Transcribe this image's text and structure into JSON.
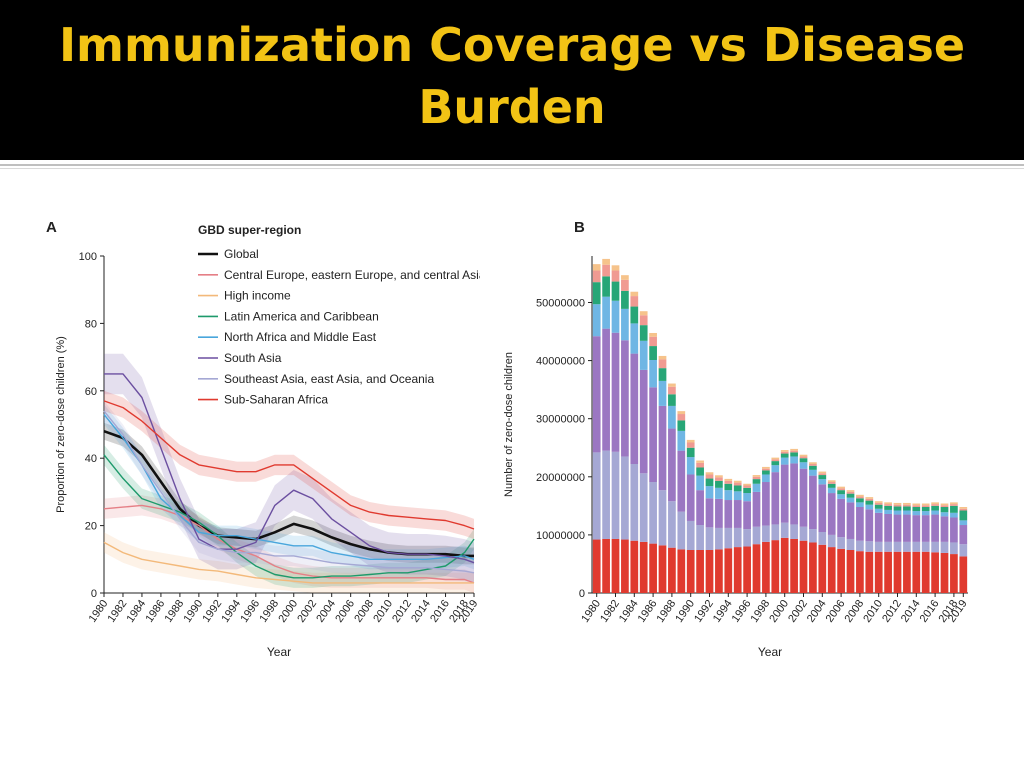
{
  "slide": {
    "title": "Immunization Coverage vs Disease Burden"
  },
  "chart_data": [
    {
      "panel": "A",
      "type": "line",
      "ylabel": "Proportion of zero-dose children (%)",
      "xlabel": "Year",
      "ylim": [
        0,
        100
      ],
      "yticks": [
        0,
        20,
        40,
        60,
        80,
        100
      ],
      "xlim": [
        1980,
        2019
      ],
      "xticks": [
        "1980",
        "1982",
        "1984",
        "1986",
        "1988",
        "1990",
        "1992",
        "1994",
        "1996",
        "1998",
        "2000",
        "2002",
        "2004",
        "2006",
        "2008",
        "2010",
        "2012",
        "2014",
        "2016",
        "2018",
        "2019"
      ],
      "legend_title": "GBD super-region",
      "legend_position": "top-right",
      "x": [
        1980,
        1982,
        1984,
        1986,
        1988,
        1990,
        1992,
        1994,
        1996,
        1998,
        2000,
        2002,
        2004,
        2006,
        2008,
        2010,
        2012,
        2014,
        2016,
        2018,
        2019
      ],
      "series": [
        {
          "name": "Global",
          "color": "#111111",
          "values": [
            48,
            46,
            41,
            33,
            25,
            20,
            17,
            16.5,
            16,
            18,
            20.5,
            19,
            16.5,
            14.5,
            13,
            12,
            11.5,
            11.5,
            11.5,
            11,
            11
          ]
        },
        {
          "name": "Central Europe, eastern Europe, and central Asia",
          "color": "#e57f86",
          "values": [
            25,
            25.5,
            26,
            25,
            23,
            20,
            16,
            13,
            11,
            8,
            6,
            5,
            4.5,
            4.5,
            4.5,
            4.5,
            4.5,
            4.5,
            4,
            4,
            3
          ]
        },
        {
          "name": "High income",
          "color": "#f3b97a",
          "values": [
            15,
            12,
            10,
            9,
            8,
            7,
            6.5,
            5.5,
            4.5,
            4,
            3.5,
            3,
            3,
            3,
            3,
            3,
            3,
            3,
            3,
            3,
            3
          ]
        },
        {
          "name": "Latin America and Caribbean",
          "color": "#1e9a6b",
          "values": [
            41,
            34,
            28,
            26,
            24,
            21,
            17,
            12,
            8,
            5.5,
            4.5,
            4.5,
            5,
            5,
            5.5,
            6,
            6,
            7,
            8,
            12,
            16
          ]
        },
        {
          "name": "North Africa and Middle East",
          "color": "#49a6dc",
          "values": [
            53,
            46,
            38,
            28,
            23,
            18,
            17,
            17,
            16,
            15,
            14,
            14,
            12,
            11,
            10,
            10,
            10,
            10,
            10.5,
            11,
            10
          ]
        },
        {
          "name": "South Asia",
          "color": "#6b4fa0",
          "values": [
            65,
            65,
            58,
            43,
            28,
            16,
            13,
            13,
            15,
            26,
            30.5,
            28,
            22,
            18,
            14,
            12,
            11.5,
            11.5,
            11,
            10,
            9
          ]
        },
        {
          "name": "Southeast Asia, east Asia, and Oceania",
          "color": "#a5a8d4",
          "values": [
            54,
            47,
            38,
            30,
            22,
            15,
            13,
            12,
            12,
            11,
            11,
            10,
            9,
            8.5,
            8,
            7.5,
            7.5,
            7.5,
            7,
            6.5,
            6
          ]
        },
        {
          "name": "Sub-Saharan Africa",
          "color": "#e03a2f",
          "values": [
            57,
            55,
            51,
            46,
            41,
            38,
            37,
            36,
            36,
            38,
            38,
            34,
            30,
            26,
            24,
            23,
            22.5,
            22,
            21.5,
            20,
            19
          ]
        }
      ]
    },
    {
      "panel": "B",
      "type": "bar",
      "stacked": true,
      "ylabel": "Number of zero-dose children",
      "xlabel": "Year",
      "ylim": [
        0,
        58000000
      ],
      "yticks": [
        "0",
        "10000000",
        "20000000",
        "30000000",
        "40000000",
        "50000000"
      ],
      "ytick_values": [
        0,
        10000000,
        20000000,
        30000000,
        40000000,
        50000000
      ],
      "xtick_labels": [
        "1980",
        "1982",
        "1984",
        "1986",
        "1988",
        "1990",
        "1992",
        "1994",
        "1996",
        "1998",
        "2000",
        "2002",
        "2004",
        "2006",
        "2008",
        "2010",
        "2012",
        "2014",
        "2016",
        "2018",
        "2019"
      ],
      "categories": [
        1980,
        1981,
        1982,
        1983,
        1984,
        1985,
        1986,
        1987,
        1988,
        1989,
        1990,
        1991,
        1992,
        1993,
        1994,
        1995,
        1996,
        1997,
        1998,
        1999,
        2000,
        2001,
        2002,
        2003,
        2004,
        2005,
        2006,
        2007,
        2008,
        2009,
        2010,
        2011,
        2012,
        2013,
        2014,
        2015,
        2016,
        2017,
        2018,
        2019
      ],
      "series": [
        {
          "name": "Sub-Saharan Africa",
          "color": "#e03a2f",
          "values": [
            9200000,
            9300000,
            9300000,
            9200000,
            9000000,
            8800000,
            8500000,
            8200000,
            7800000,
            7500000,
            7400000,
            7400000,
            7400000,
            7500000,
            7700000,
            7900000,
            8000000,
            8400000,
            8800000,
            9100000,
            9500000,
            9300000,
            9000000,
            8700000,
            8300000,
            7900000,
            7600000,
            7400000,
            7200000,
            7100000,
            7100000,
            7100000,
            7100000,
            7100000,
            7100000,
            7100000,
            7000000,
            6900000,
            6700000,
            6300000
          ]
        },
        {
          "name": "Southeast Asia, east Asia, and Oceania",
          "color": "#a5a8d4",
          "values": [
            15000000,
            15200000,
            15000000,
            14300000,
            13200000,
            11800000,
            10600000,
            9500000,
            8000000,
            6500000,
            5000000,
            4300000,
            3900000,
            3700000,
            3500000,
            3300000,
            3000000,
            3000000,
            2800000,
            2700000,
            2600000,
            2500000,
            2400000,
            2300000,
            2200000,
            2100000,
            2000000,
            1900000,
            1800000,
            1800000,
            1700000,
            1700000,
            1700000,
            1700000,
            1700000,
            1700000,
            1800000,
            1900000,
            2000000,
            2100000
          ]
        },
        {
          "name": "South Asia",
          "color": "#9b77c2",
          "values": [
            20000000,
            21000000,
            20500000,
            20000000,
            19000000,
            17800000,
            16300000,
            14500000,
            12500000,
            10500000,
            8000000,
            6000000,
            5000000,
            5000000,
            4800000,
            4800000,
            4800000,
            6000000,
            7500000,
            9000000,
            10000000,
            10500000,
            10000000,
            9200000,
            8200000,
            7200000,
            6600000,
            6300000,
            5800000,
            5500000,
            5000000,
            4800000,
            4700000,
            4700000,
            4600000,
            4600000,
            4700000,
            4400000,
            4300000,
            3300000
          ]
        },
        {
          "name": "North Africa and Middle East",
          "color": "#6fb6e4",
          "values": [
            5500000,
            5500000,
            5500000,
            5400000,
            5200000,
            5000000,
            4700000,
            4300000,
            3900000,
            3400000,
            3000000,
            2500000,
            2100000,
            1900000,
            1700000,
            1500000,
            1400000,
            1400000,
            1300000,
            1200000,
            1200000,
            1200000,
            1100000,
            1000000,
            900000,
            900000,
            800000,
            800000,
            800000,
            800000,
            700000,
            700000,
            700000,
            700000,
            700000,
            700000,
            700000,
            700000,
            800000,
            800000
          ]
        },
        {
          "name": "Latin America and Caribbean",
          "color": "#27a677",
          "values": [
            3800000,
            3500000,
            3300000,
            3100000,
            2900000,
            2700000,
            2400000,
            2200000,
            2000000,
            1800000,
            1600000,
            1400000,
            1300000,
            1200000,
            1100000,
            1000000,
            900000,
            800000,
            700000,
            700000,
            700000,
            700000,
            700000,
            700000,
            700000,
            700000,
            700000,
            700000,
            700000,
            700000,
            700000,
            700000,
            700000,
            700000,
            700000,
            700000,
            800000,
            900000,
            1200000,
            1700000
          ]
        },
        {
          "name": "Central Europe, eastern Europe, and central Asia",
          "color": "#f09a92",
          "values": [
            2000000,
            2000000,
            1900000,
            1900000,
            1800000,
            1700000,
            1600000,
            1500000,
            1300000,
            1100000,
            900000,
            800000,
            700000,
            600000,
            500000,
            500000,
            400000,
            400000,
            300000,
            300000,
            300000,
            300000,
            300000,
            300000,
            300000,
            300000,
            300000,
            300000,
            300000,
            300000,
            300000,
            300000,
            300000,
            300000,
            300000,
            300000,
            300000,
            300000,
            300000,
            300000
          ]
        },
        {
          "name": "High income",
          "color": "#f6c38b",
          "values": [
            1100000,
            1000000,
            900000,
            800000,
            750000,
            700000,
            650000,
            600000,
            550000,
            500000,
            450000,
            400000,
            380000,
            360000,
            340000,
            320000,
            300000,
            300000,
            300000,
            300000,
            300000,
            300000,
            300000,
            300000,
            300000,
            300000,
            300000,
            300000,
            300000,
            300000,
            300000,
            300000,
            300000,
            300000,
            300000,
            300000,
            300000,
            300000,
            300000,
            300000
          ]
        }
      ]
    }
  ]
}
